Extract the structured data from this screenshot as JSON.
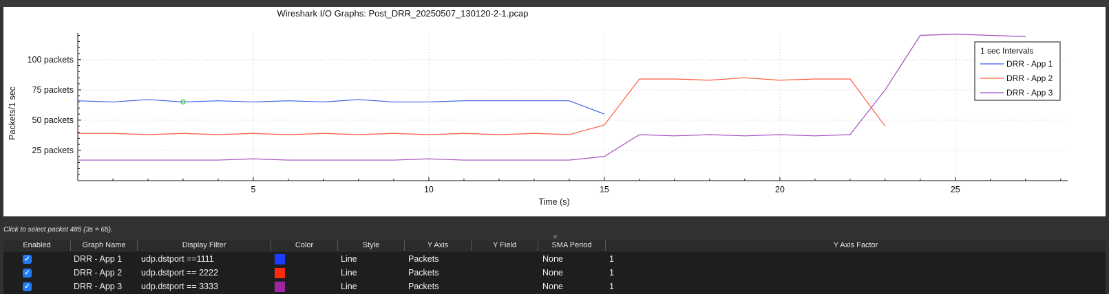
{
  "graph": {
    "title": "Wireshark I/O Graphs: Post_DRR_20250507_130120-2-1.pcap",
    "ylabel": "Packets/1 sec",
    "xlabel": "Time (s)",
    "x_ticks": [
      "5",
      "10",
      "15",
      "20",
      "25"
    ],
    "y_ticks": [
      "25 packets",
      "50 packets",
      "75 packets",
      "100 packets"
    ]
  },
  "status": {
    "text": "Click to select packet 485 (3s = 65)."
  },
  "table": {
    "headers": [
      "Enabled",
      "Graph Name",
      "Display Filter",
      "Color",
      "Style",
      "Y Axis",
      "Y Field",
      "SMA Period",
      "Y Axis Factor"
    ],
    "rows": [
      {
        "enabled": "✓",
        "name": "DRR - App 1",
        "filter": "udp.dstport ==1111",
        "color": "#1a3cff",
        "style": "Line",
        "y_axis": "Packets",
        "y_field": "",
        "sma": "None",
        "factor": "1"
      },
      {
        "enabled": "✓",
        "name": "DRR - App 2",
        "filter": "udp.dstport == 2222",
        "color": "#ff2a0c",
        "style": "Line",
        "y_axis": "Packets",
        "y_field": "",
        "sma": "None",
        "factor": "1"
      },
      {
        "enabled": "✓",
        "name": "DRR - App 3",
        "filter": "udp.dstport == 3333",
        "color": "#a025a5",
        "style": "Line",
        "y_axis": "Packets",
        "y_field": "",
        "sma": "None",
        "factor": "1"
      }
    ]
  },
  "chart_data": {
    "type": "line",
    "title": "Wireshark I/O Graphs: Post_DRR_20250507_130120-2-1.pcap",
    "xlabel": "Time (s)",
    "ylabel": "Packets/1 sec",
    "xlim": [
      0,
      28.2
    ],
    "ylim": [
      0,
      122
    ],
    "legend_title": "1 sec Intervals",
    "legend_position": "top-right",
    "grid": true,
    "series": [
      {
        "name": "DRR - App 1",
        "color": "#3a5ee8",
        "x": [
          0,
          1,
          2,
          3,
          4,
          5,
          6,
          7,
          8,
          9,
          10,
          11,
          12,
          13,
          14,
          15
        ],
        "y": [
          66,
          65,
          67,
          65,
          66,
          65,
          66,
          65,
          67,
          65,
          65,
          66,
          66,
          66,
          66,
          55
        ]
      },
      {
        "name": "DRR - App 2",
        "color": "#ff5a3c",
        "x": [
          0,
          1,
          2,
          3,
          4,
          5,
          6,
          7,
          8,
          9,
          10,
          11,
          12,
          13,
          14,
          15,
          16,
          17,
          18,
          19,
          20,
          21,
          22,
          23
        ],
        "y": [
          39,
          39,
          38,
          39,
          38,
          39,
          38,
          39,
          38,
          39,
          38,
          39,
          38,
          39,
          38,
          46,
          84,
          84,
          83,
          85,
          83,
          84,
          84,
          45
        ]
      },
      {
        "name": "DRR - App 3",
        "color": "#a44cc0",
        "x": [
          0,
          1,
          2,
          3,
          4,
          5,
          6,
          7,
          8,
          9,
          10,
          11,
          12,
          13,
          14,
          15,
          16,
          17,
          18,
          19,
          20,
          21,
          22,
          23,
          24,
          25,
          26,
          27
        ],
        "y": [
          17,
          17,
          17,
          17,
          17,
          18,
          17,
          17,
          17,
          17,
          18,
          17,
          17,
          17,
          17,
          20,
          38,
          37,
          38,
          37,
          38,
          37,
          38,
          75,
          120,
          121,
          120,
          119
        ]
      }
    ],
    "selected_point": {
      "series": "DRR - App 1",
      "x": 3,
      "y": 65
    }
  }
}
